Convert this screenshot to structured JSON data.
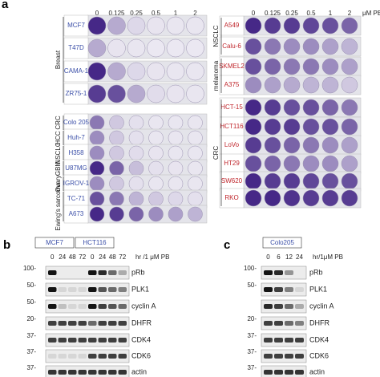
{
  "panel_a": {
    "label": "a",
    "left": {
      "concentrations": [
        "0",
        "0.125",
        "0.25",
        "0.5",
        "1",
        "2"
      ],
      "groups": [
        {
          "name": "Breast",
          "cell_lines": [
            "MCF7",
            "T47D",
            "CAMA-1",
            "ZR75-1"
          ]
        },
        {
          "name": "CRC",
          "cell_lines": [
            "Colo 205"
          ]
        },
        {
          "name": "HCC",
          "cell_lines": [
            "Huh-7"
          ]
        },
        {
          "name": "NSCLC",
          "cell_lines": [
            "H358"
          ]
        },
        {
          "name": "GBM",
          "cell_lines": [
            "U87MG"
          ]
        },
        {
          "name": "Ovary",
          "cell_lines": [
            "IGROV-1"
          ]
        },
        {
          "name": "Ewing's sarcoma",
          "cell_lines": [
            "TC-71",
            "A673"
          ]
        }
      ]
    },
    "right": {
      "concentrations": [
        "0",
        "0.125",
        "0.25",
        "0.5",
        "1",
        "2"
      ],
      "unit": "μM PB",
      "groups": [
        {
          "name": "NSCLC",
          "cell_lines": [
            "A549",
            "Calu-6"
          ]
        },
        {
          "name": "melanoma",
          "cell_lines": [
            "SKMEL2",
            "A375"
          ]
        },
        {
          "name": "CRC",
          "cell_lines": [
            "HCT-15",
            "HCT116",
            "LoVo",
            "HT29",
            "SW620",
            "RKO"
          ]
        }
      ]
    }
  },
  "panel_b": {
    "label": "b",
    "cell_lines": [
      "MCF7",
      "HCT116"
    ],
    "lanes": [
      "0",
      "24",
      "48",
      "72",
      "0",
      "24",
      "48",
      "72"
    ],
    "condition": "hr /1 μM PB",
    "blots": [
      {
        "protein": "pRb",
        "marker": "100-"
      },
      {
        "protein": "PLK1",
        "marker": "50-"
      },
      {
        "protein": "cyclin A",
        "marker": "50-"
      },
      {
        "protein": "DHFR",
        "marker": "20-"
      },
      {
        "protein": "CDK4",
        "marker": "37-"
      },
      {
        "protein": "CDK6",
        "marker": "37-"
      },
      {
        "protein": "actin",
        "marker": "37-"
      }
    ]
  },
  "panel_c": {
    "label": "c",
    "cell_lines": [
      "Colo205"
    ],
    "lanes": [
      "0",
      "6",
      "12",
      "24"
    ],
    "condition": "hr/1μM PB",
    "blots": [
      {
        "protein": "pRb",
        "marker": "100-"
      },
      {
        "protein": "PLK1",
        "marker": "50-"
      },
      {
        "protein": "cyclin A"
      },
      {
        "protein": "DHFR",
        "marker": "20-"
      },
      {
        "protein": "CDK4",
        "marker": "37-"
      },
      {
        "protein": "CDK6",
        "marker": "37-"
      },
      {
        "protein": "actin",
        "marker": "37-"
      }
    ]
  }
}
